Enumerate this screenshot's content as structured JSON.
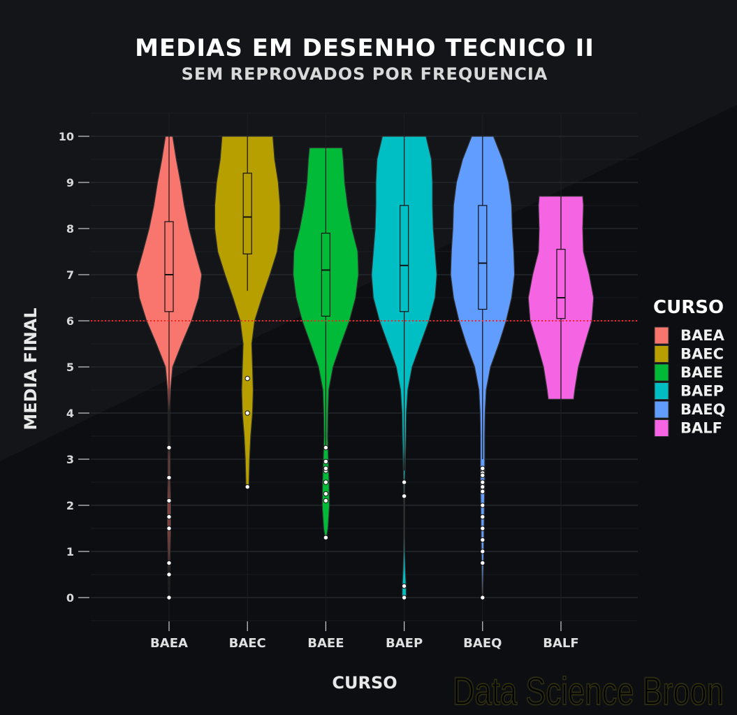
{
  "chart_data": {
    "type": "violin",
    "title": "MEDIAS EM DESENHO TECNICO II",
    "subtitle": "SEM REPROVADOS POR FREQUENCIA",
    "xlabel": "CURSO",
    "ylabel": "MEDIA FINAL",
    "ylim": [
      -0.5,
      10.5
    ],
    "yticks": [
      0,
      1,
      2,
      3,
      4,
      5,
      6,
      7,
      8,
      9,
      10
    ],
    "categories": [
      "BAEA",
      "BAEC",
      "BAEE",
      "BAEP",
      "BAEQ",
      "BALF"
    ],
    "reference_line": {
      "value": 6,
      "color": "#ff2020",
      "style": "dotted"
    },
    "legend": {
      "title": "CURSO",
      "placement": "right",
      "entries": [
        "BAEA",
        "BAEC",
        "BAEE",
        "BAEP",
        "BAEQ",
        "BALF"
      ]
    },
    "series": [
      {
        "category": "BAEA",
        "color": "#f8766d",
        "box": {
          "min": 0.0,
          "q1": 6.2,
          "median": 7.0,
          "q3": 8.15,
          "max": 10.0
        },
        "density": [
          [
            0,
            0.01
          ],
          [
            0.5,
            0.02
          ],
          [
            1,
            0.03
          ],
          [
            1.5,
            0.04
          ],
          [
            2,
            0.04
          ],
          [
            2.5,
            0.03
          ],
          [
            3,
            0.03
          ],
          [
            3.5,
            0.02
          ],
          [
            4,
            0.02
          ],
          [
            4.5,
            0.04
          ],
          [
            5,
            0.1
          ],
          [
            5.5,
            0.35
          ],
          [
            6,
            0.62
          ],
          [
            6.5,
            0.82
          ],
          [
            7,
            0.9
          ],
          [
            7.5,
            0.72
          ],
          [
            8,
            0.55
          ],
          [
            8.5,
            0.42
          ],
          [
            9,
            0.32
          ],
          [
            9.5,
            0.2
          ],
          [
            10,
            0.1
          ]
        ],
        "outliers": [
          3.25,
          2.6,
          2.1,
          1.75,
          1.5,
          0.75,
          0.5,
          0.0
        ]
      },
      {
        "category": "BAEC",
        "color": "#b79f00",
        "box": {
          "min": 6.65,
          "q1": 7.45,
          "median": 8.25,
          "q3": 9.2,
          "max": 10.0
        },
        "density": [
          [
            2.4,
            0.04
          ],
          [
            3,
            0.06
          ],
          [
            3.5,
            0.09
          ],
          [
            4,
            0.14
          ],
          [
            4.5,
            0.16
          ],
          [
            5,
            0.14
          ],
          [
            5.5,
            0.12
          ],
          [
            6,
            0.2
          ],
          [
            6.5,
            0.4
          ],
          [
            7,
            0.62
          ],
          [
            7.5,
            0.82
          ],
          [
            8,
            0.9
          ],
          [
            8.5,
            0.9
          ],
          [
            9,
            0.85
          ],
          [
            9.5,
            0.75
          ],
          [
            10,
            0.7
          ]
        ],
        "outliers": [
          4.75,
          4.0,
          2.4
        ]
      },
      {
        "category": "BAEE",
        "color": "#00ba38",
        "box": {
          "min": 3.3,
          "q1": 6.1,
          "median": 7.1,
          "q3": 7.9,
          "max": 9.75
        },
        "density": [
          [
            1.3,
            0.02
          ],
          [
            1.5,
            0.06
          ],
          [
            2,
            0.1
          ],
          [
            2.5,
            0.09
          ],
          [
            3,
            0.07
          ],
          [
            3.5,
            0.05
          ],
          [
            4,
            0.06
          ],
          [
            4.5,
            0.08
          ],
          [
            5,
            0.2
          ],
          [
            5.5,
            0.42
          ],
          [
            6,
            0.65
          ],
          [
            6.5,
            0.82
          ],
          [
            7,
            0.9
          ],
          [
            7.5,
            0.88
          ],
          [
            8,
            0.72
          ],
          [
            8.5,
            0.6
          ],
          [
            9,
            0.52
          ],
          [
            9.5,
            0.48
          ],
          [
            9.75,
            0.45
          ]
        ],
        "outliers": [
          3.25,
          2.95,
          2.75,
          2.8,
          2.5,
          2.25,
          2.1,
          1.3
        ]
      },
      {
        "category": "BAEP",
        "color": "#00bfc4",
        "box": {
          "min": 2.75,
          "q1": 6.2,
          "median": 7.2,
          "q3": 8.5,
          "max": 10.0
        },
        "density": [
          [
            0,
            0.06
          ],
          [
            0.3,
            0.05
          ],
          [
            0.6,
            0.03
          ],
          [
            1,
            0.015
          ],
          [
            1.5,
            0.01
          ],
          [
            2,
            0.01
          ],
          [
            2.5,
            0.015
          ],
          [
            3,
            0.03
          ],
          [
            3.5,
            0.05
          ],
          [
            4,
            0.06
          ],
          [
            4.5,
            0.1
          ],
          [
            5,
            0.22
          ],
          [
            5.5,
            0.45
          ],
          [
            6,
            0.68
          ],
          [
            6.5,
            0.85
          ],
          [
            7,
            0.9
          ],
          [
            7.5,
            0.85
          ],
          [
            8,
            0.8
          ],
          [
            8.5,
            0.78
          ],
          [
            9,
            0.78
          ],
          [
            9.5,
            0.75
          ],
          [
            10,
            0.6
          ]
        ],
        "outliers": [
          2.5,
          2.2,
          0.25,
          0.0
        ]
      },
      {
        "category": "BAEQ",
        "color": "#619cff",
        "box": {
          "min": 3.0,
          "q1": 6.25,
          "median": 7.25,
          "q3": 8.5,
          "max": 10.0
        },
        "density": [
          [
            0,
            0.01
          ],
          [
            0.5,
            0.02
          ],
          [
            1,
            0.03
          ],
          [
            1.5,
            0.04
          ],
          [
            2,
            0.05
          ],
          [
            2.5,
            0.06
          ],
          [
            3,
            0.06
          ],
          [
            3.5,
            0.06
          ],
          [
            4,
            0.07
          ],
          [
            4.5,
            0.1
          ],
          [
            5,
            0.22
          ],
          [
            5.5,
            0.45
          ],
          [
            6,
            0.65
          ],
          [
            6.5,
            0.8
          ],
          [
            7,
            0.88
          ],
          [
            7.5,
            0.86
          ],
          [
            8,
            0.82
          ],
          [
            8.5,
            0.8
          ],
          [
            9,
            0.72
          ],
          [
            9.5,
            0.55
          ],
          [
            10,
            0.3
          ]
        ],
        "outliers": [
          2.8,
          2.7,
          2.65,
          2.5,
          2.4,
          2.3,
          2.0,
          1.75,
          1.5,
          1.25,
          1.0,
          0.75,
          0.0
        ]
      },
      {
        "category": "BALF",
        "color": "#f564e3",
        "box": {
          "min": 4.3,
          "q1": 6.05,
          "median": 6.5,
          "q3": 7.55,
          "max": 8.7
        },
        "density": [
          [
            4.3,
            0.35
          ],
          [
            4.5,
            0.38
          ],
          [
            5,
            0.48
          ],
          [
            5.5,
            0.66
          ],
          [
            6,
            0.85
          ],
          [
            6.5,
            0.9
          ],
          [
            7,
            0.78
          ],
          [
            7.5,
            0.62
          ],
          [
            8,
            0.6
          ],
          [
            8.5,
            0.62
          ],
          [
            8.7,
            0.6
          ]
        ],
        "outliers": []
      }
    ]
  },
  "watermark": "Data Science Broon"
}
